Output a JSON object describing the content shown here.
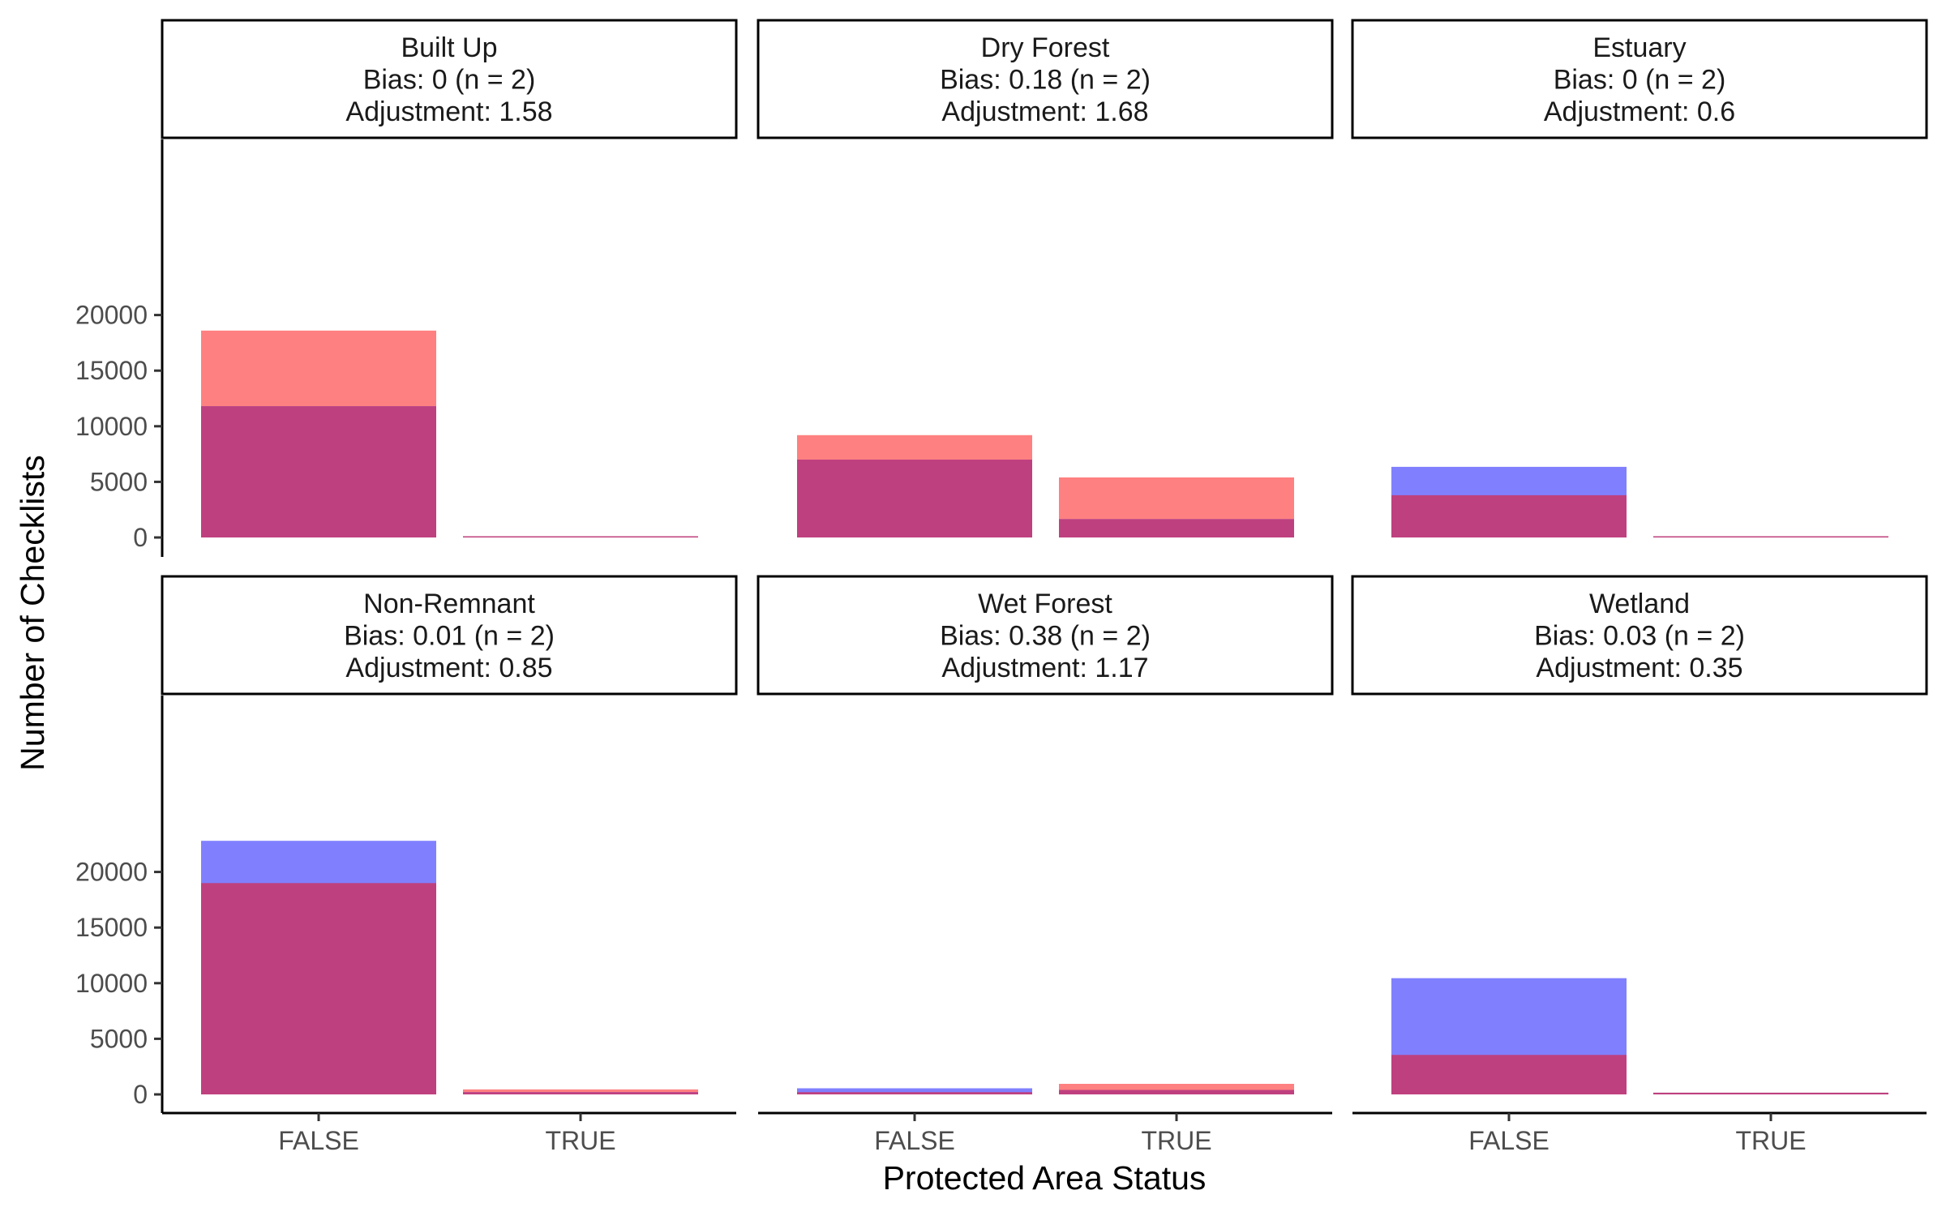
{
  "chart_data": {
    "type": "bar",
    "xlabel": "Protected Area Status",
    "ylabel": "Number of Checklists",
    "ylim": [
      0,
      23500
    ],
    "y_ticks": [
      0,
      5000,
      10000,
      15000,
      20000
    ],
    "y_tick_labels": [
      "0",
      "5000",
      "10000",
      "15000",
      "20000"
    ],
    "categories": [
      "FALSE",
      "TRUE"
    ],
    "legend": "none",
    "grid": false,
    "colors": {
      "red_series": "#ff8080",
      "blue_series": "#8080ff",
      "overlap": "#bf407f"
    },
    "series_colors_order": [
      "red_series",
      "blue_series"
    ],
    "panels": [
      {
        "title": "Built Up",
        "bias": "Bias: 0 (n = 2)",
        "adjustment": "Adjustment: 1.58",
        "series": [
          {
            "values": [
              18600,
              0
            ]
          },
          {
            "values": [
              11800,
              0
            ]
          }
        ]
      },
      {
        "title": "Dry Forest",
        "bias": "Bias: 0.18 (n = 2)",
        "adjustment": "Adjustment: 1.68",
        "series": [
          {
            "values": [
              9200,
              5400
            ]
          },
          {
            "values": [
              7000,
              1650
            ]
          }
        ]
      },
      {
        "title": "Estuary",
        "bias": "Bias: 0 (n = 2)",
        "adjustment": "Adjustment: 0.6",
        "series": [
          {
            "values": [
              3800,
              10
            ]
          },
          {
            "values": [
              6350,
              10
            ]
          }
        ]
      },
      {
        "title": "Non-Remnant",
        "bias": "Bias: 0.01 (n = 2)",
        "adjustment": "Adjustment: 0.85",
        "series": [
          {
            "values": [
              19000,
              450
            ]
          },
          {
            "values": [
              22800,
              200
            ]
          }
        ]
      },
      {
        "title": "Wet Forest",
        "bias": "Bias: 0.38 (n = 2)",
        "adjustment": "Adjustment: 1.17",
        "series": [
          {
            "values": [
              200,
              950
            ]
          },
          {
            "values": [
              550,
              400
            ]
          }
        ]
      },
      {
        "title": "Wetland",
        "bias": "Bias: 0.03 (n = 2)",
        "adjustment": "Adjustment: 0.35",
        "series": [
          {
            "values": [
              3550,
              150
            ]
          },
          {
            "values": [
              10450,
              150
            ]
          }
        ]
      }
    ]
  }
}
